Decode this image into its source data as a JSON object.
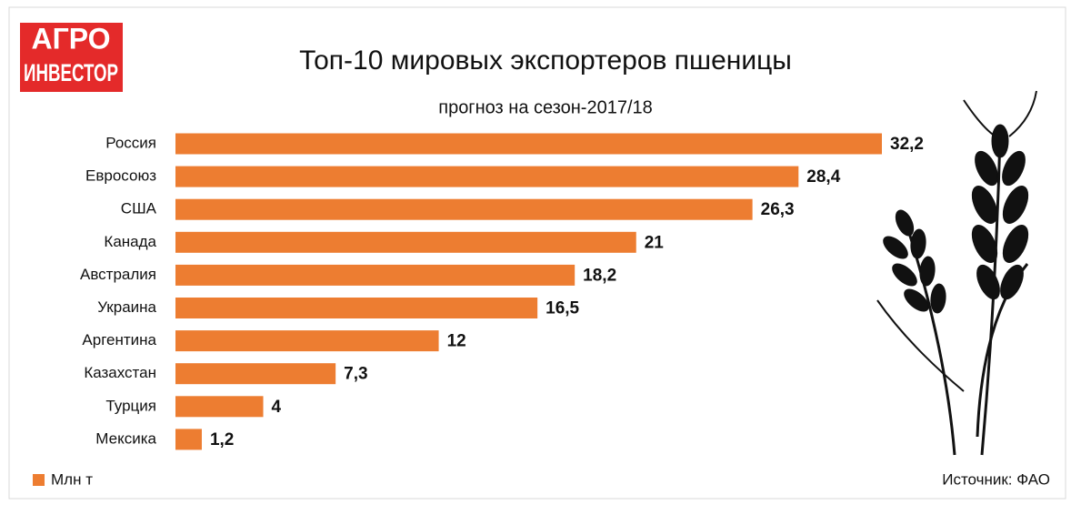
{
  "logo": {
    "line1": "АГРО",
    "line2": "ИНВЕСТОР"
  },
  "chart_data": {
    "type": "bar",
    "orientation": "horizontal",
    "title": "Топ-10 мировых экспортеров пшеницы",
    "subtitle": "прогноз на сезон-2017/18",
    "categories": [
      "Россия",
      "Евросоюз",
      "США",
      "Канада",
      "Австралия",
      "Украина",
      "Аргентина",
      "Казахстан",
      "Турция",
      "Мексика"
    ],
    "series": [
      {
        "name": "Млн т",
        "color": "#ED7D31",
        "values": [
          32.2,
          28.4,
          26.3,
          21,
          18.2,
          16.5,
          12,
          7.3,
          4,
          1.2
        ],
        "value_labels": [
          "32,2",
          "28,4",
          "26,3",
          "21",
          "18,2",
          "16,5",
          "12",
          "7,3",
          "4",
          "1,2"
        ]
      }
    ],
    "legend": "bottom-left",
    "source": "Источник:  ФАО"
  }
}
